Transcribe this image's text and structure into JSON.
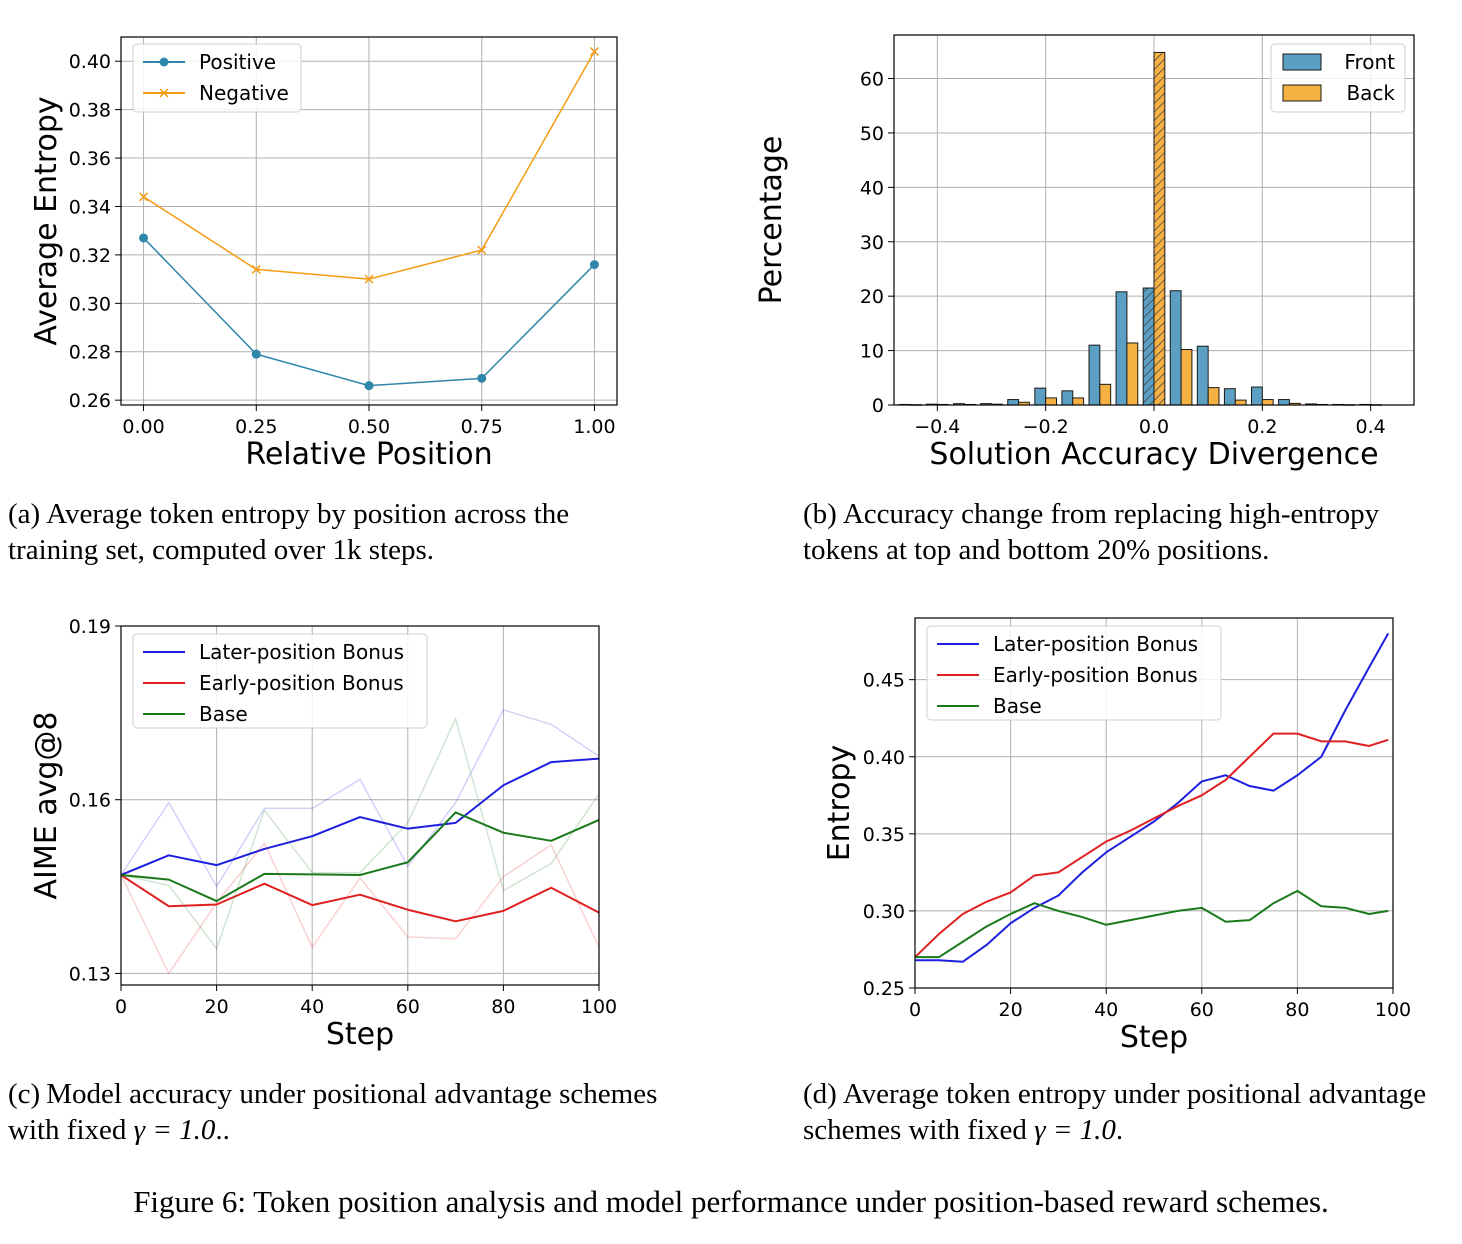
{
  "chart_data": [
    {
      "type": "line",
      "xlabel": "Relative Position",
      "ylabel": "Average Entropy",
      "xlim": [
        -0.05,
        1.05
      ],
      "ylim": [
        0.258,
        0.41
      ],
      "xticks": [
        "0.00",
        "0.25",
        "0.50",
        "0.75",
        "1.00"
      ],
      "yticks": [
        "0.26",
        "0.28",
        "0.30",
        "0.32",
        "0.34",
        "0.36",
        "0.38",
        "0.40"
      ],
      "grid": true,
      "legend": "top-left",
      "x": [
        0,
        0.25,
        0.5,
        0.75,
        1.0
      ],
      "series": [
        {
          "name": "Positive",
          "color": "#2e86ab",
          "marker": "circle",
          "values": [
            0.327,
            0.279,
            0.266,
            0.269,
            0.316
          ]
        },
        {
          "name": "Negative",
          "color": "#f39c12",
          "marker": "x",
          "values": [
            0.344,
            0.314,
            0.31,
            0.322,
            0.404
          ]
        }
      ]
    },
    {
      "type": "bar",
      "xlabel": "Solution Accuracy Divergence",
      "ylabel": "Percentage",
      "xlim": [
        -0.48,
        0.48
      ],
      "ylim": [
        0,
        68
      ],
      "xticks": [
        "−0.4",
        "−0.2",
        "0.0",
        "0.2",
        "0.4"
      ],
      "yticks": [
        "0",
        "10",
        "20",
        "30",
        "40",
        "50",
        "60"
      ],
      "grid": true,
      "legend": "top-right",
      "x": [
        -0.45,
        -0.4,
        -0.35,
        -0.3,
        -0.25,
        -0.2,
        -0.15,
        -0.1,
        -0.05,
        0.0,
        0.05,
        0.1,
        0.15,
        0.2,
        0.25,
        0.3,
        0.35,
        0.4
      ],
      "series": [
        {
          "name": "Front",
          "color": "#5b9fc2",
          "values": [
            0.1,
            0.15,
            0.25,
            0.25,
            1.0,
            3.1,
            2.6,
            11.0,
            20.8,
            21.5,
            21.0,
            10.8,
            3.0,
            3.3,
            1.0,
            0.2,
            0.1,
            0.1
          ]
        },
        {
          "name": "Back",
          "color": "#f5b142",
          "values": [
            0.05,
            0.1,
            0.1,
            0.15,
            0.5,
            1.3,
            1.3,
            3.8,
            11.4,
            64.8,
            10.2,
            3.2,
            0.9,
            1.0,
            0.3,
            0.1,
            0.05,
            0.05
          ]
        }
      ]
    },
    {
      "type": "line",
      "xlabel": "Step",
      "ylabel": "AIME avg@8",
      "xlim": [
        0,
        100
      ],
      "ylim": [
        0.128,
        0.19
      ],
      "xticks": [
        "0",
        "20",
        "40",
        "60",
        "80",
        "100"
      ],
      "yticks": [
        "0.13",
        "0.16",
        "0.19"
      ],
      "grid": true,
      "legend": "top-left",
      "x": [
        0,
        10,
        20,
        30,
        40,
        50,
        60,
        70,
        80,
        90,
        100
      ],
      "series": [
        {
          "name": "Later-position Bonus",
          "color": "#1f1fe0",
          "values": [
            0.147,
            0.1504,
            0.1487,
            0.1515,
            0.1537,
            0.157,
            0.155,
            0.156,
            0.1625,
            0.1665,
            0.1671
          ],
          "raw": [
            0.147,
            0.1595,
            0.145,
            0.1585,
            0.1585,
            0.1635,
            0.1485,
            0.1595,
            0.1755,
            0.173,
            0.1675
          ]
        },
        {
          "name": "Early-position Bonus",
          "color": "#e02020",
          "values": [
            0.147,
            0.1416,
            0.1419,
            0.1455,
            0.1418,
            0.1436,
            0.141,
            0.139,
            0.1408,
            0.1448,
            0.1405
          ],
          "raw": [
            0.147,
            0.13,
            0.1422,
            0.1525,
            0.1345,
            0.1465,
            0.1363,
            0.136,
            0.1467,
            0.1522,
            0.1345
          ]
        },
        {
          "name": "Base",
          "color": "#1a7a1a",
          "values": [
            0.147,
            0.1462,
            0.1425,
            0.1472,
            0.1471,
            0.147,
            0.1492,
            0.1578,
            0.1543,
            0.1529,
            0.1565
          ],
          "raw": [
            0.147,
            0.1452,
            0.1343,
            0.1582,
            0.1474,
            0.1474,
            0.156,
            0.174,
            0.1443,
            0.149,
            0.161
          ]
        }
      ]
    },
    {
      "type": "line",
      "xlabel": "Step",
      "ylabel": "Entropy",
      "xlim": [
        0,
        100
      ],
      "ylim": [
        0.25,
        0.49
      ],
      "xticks": [
        "0",
        "20",
        "40",
        "60",
        "80",
        "100"
      ],
      "yticks": [
        "0.25",
        "0.30",
        "0.35",
        "0.40",
        "0.45"
      ],
      "grid": true,
      "legend": "top-left",
      "x": [
        0,
        5,
        10,
        15,
        20,
        25,
        30,
        35,
        40,
        45,
        50,
        55,
        60,
        65,
        70,
        75,
        80,
        85,
        90,
        95,
        99
      ],
      "series": [
        {
          "name": "Later-position Bonus",
          "color": "#1f1fe0",
          "values": [
            0.268,
            0.268,
            0.267,
            0.278,
            0.292,
            0.302,
            0.31,
            0.325,
            0.338,
            0.348,
            0.358,
            0.37,
            0.384,
            0.388,
            0.381,
            0.378,
            0.388,
            0.4,
            0.43,
            0.458,
            0.48
          ]
        },
        {
          "name": "Early-position Bonus",
          "color": "#e02020",
          "values": [
            0.27,
            0.285,
            0.298,
            0.306,
            0.312,
            0.323,
            0.325,
            0.335,
            0.345,
            0.352,
            0.36,
            0.368,
            0.375,
            0.385,
            0.4,
            0.415,
            0.415,
            0.41,
            0.41,
            0.407,
            0.411
          ]
        },
        {
          "name": "Base",
          "color": "#1a7a1a",
          "values": [
            0.27,
            0.27,
            0.28,
            0.29,
            0.298,
            0.305,
            0.3,
            0.296,
            0.291,
            0.294,
            0.297,
            0.3,
            0.302,
            0.293,
            0.294,
            0.305,
            0.313,
            0.303,
            0.302,
            0.298,
            0.3
          ]
        }
      ]
    }
  ],
  "captions": {
    "a_label": "(a)",
    "a_text": "Average token entropy by position across the training set, computed over 1k steps.",
    "b_label": "(b)",
    "b_text": "Accuracy change from replacing high-entropy tokens at top and bottom 20% positions.",
    "c_label": "(c)",
    "c_text_1": "Model accuracy under positional advantage schemes with fixed",
    "c_gamma": "γ = 1.0",
    "c_text_2": "..",
    "d_label": "(d)",
    "d_text_1": "Average token entropy under positional advantage schemes with fixed",
    "d_gamma": "γ = 1.0",
    "d_text_2": ".",
    "figure": "Figure 6: Token position analysis and model performance under position-based reward schemes."
  }
}
